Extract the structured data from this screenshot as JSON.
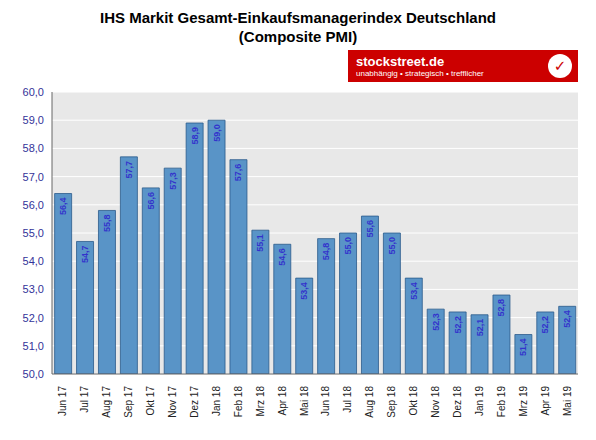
{
  "chart_data": {
    "type": "bar",
    "title": "IHS Markit Gesamt-Einkaufsmanagerindex Deutschland",
    "subtitle": "(Composite PMI)",
    "categories": [
      "Jun 17",
      "Jul 17",
      "Aug 17",
      "Sep 17",
      "Okt 17",
      "Nov 17",
      "Dez 17",
      "Jan 18",
      "Feb 18",
      "Mrz 18",
      "Apr 18",
      "Mai 18",
      "Jun 18",
      "Jul 18",
      "Aug 18",
      "Sep 18",
      "Okt 18",
      "Nov 18",
      "Dez 18",
      "Jan 19",
      "Feb 19",
      "Mrz 19",
      "Apr 19",
      "Mai 19"
    ],
    "values": [
      56.4,
      54.7,
      55.8,
      57.7,
      56.6,
      57.3,
      58.9,
      59.0,
      57.6,
      55.1,
      54.6,
      53.4,
      54.8,
      55.0,
      55.6,
      55.0,
      53.4,
      52.3,
      52.2,
      52.1,
      52.8,
      51.4,
      52.2,
      52.4
    ],
    "value_labels": [
      "56,4",
      "54,7",
      "55,8",
      "57,7",
      "56,6",
      "57,3",
      "58,9",
      "59,0",
      "57,6",
      "55,1",
      "54,6",
      "53,4",
      "54,8",
      "55,0",
      "55,6",
      "55,0",
      "53,4",
      "52,3",
      "52,2",
      "52,1",
      "52,8",
      "51,4",
      "52,2",
      "52,4"
    ],
    "data_labels": true,
    "color": "#5994c7",
    "ylim": [
      50.0,
      60.0
    ],
    "yticks": [
      {
        "value": 50.0,
        "label": "50,0"
      },
      {
        "value": 51.0,
        "label": "51,0"
      },
      {
        "value": 52.0,
        "label": "52,0"
      },
      {
        "value": 53.0,
        "label": "53,0"
      },
      {
        "value": 54.0,
        "label": "54,0"
      },
      {
        "value": 55.0,
        "label": "55,0"
      },
      {
        "value": 56.0,
        "label": "56,0"
      },
      {
        "value": 57.0,
        "label": "57,0"
      },
      {
        "value": 58.0,
        "label": "58,0"
      },
      {
        "value": 59.0,
        "label": "59,0"
      },
      {
        "value": 60.0,
        "label": "60,0"
      }
    ],
    "grid": true,
    "annotations": [
      "stockstreet.de",
      "unabhängig • strategisch • trefflicher",
      "✓"
    ]
  }
}
